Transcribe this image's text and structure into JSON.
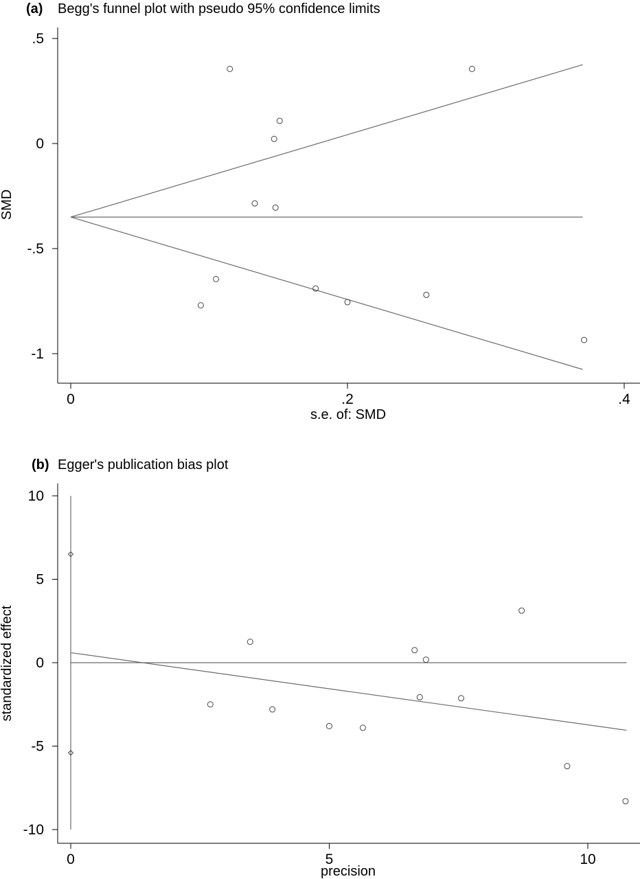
{
  "chart_data": [
    {
      "type": "scatter",
      "panel_label": "(a)",
      "title": "Begg's funnel plot with pseudo 95% confidence limits",
      "xlabel": "s.e. of: SMD",
      "ylabel": "SMD",
      "xlim": [
        0,
        0.41
      ],
      "ylim": [
        -1.15,
        0.55
      ],
      "xticks": [
        {
          "v": 0,
          "label": "0"
        },
        {
          "v": 0.2,
          "label": ".2"
        },
        {
          "v": 0.4,
          "label": ".4"
        }
      ],
      "yticks": [
        {
          "v": 0.5,
          "label": ".5"
        },
        {
          "v": 0,
          "label": "0"
        },
        {
          "v": -0.5,
          "label": "-.5"
        },
        {
          "v": -1,
          "label": "-1"
        }
      ],
      "pooled_effect": -0.35,
      "funnel_se_max": 0.37,
      "points": [
        {
          "x": 0.115,
          "y": 0.355
        },
        {
          "x": 0.29,
          "y": 0.355
        },
        {
          "x": 0.151,
          "y": 0.108
        },
        {
          "x": 0.147,
          "y": 0.022
        },
        {
          "x": 0.133,
          "y": -0.285
        },
        {
          "x": 0.148,
          "y": -0.305
        },
        {
          "x": 0.105,
          "y": -0.645
        },
        {
          "x": 0.094,
          "y": -0.77
        },
        {
          "x": 0.177,
          "y": -0.69
        },
        {
          "x": 0.2,
          "y": -0.755
        },
        {
          "x": 0.257,
          "y": -0.72
        },
        {
          "x": 0.371,
          "y": -0.935
        }
      ]
    },
    {
      "type": "scatter",
      "panel_label": "(b)",
      "title": "Egger's publication bias plot",
      "xlabel": "precision",
      "ylabel": "standardized effect",
      "xlim": [
        0,
        11.1
      ],
      "ylim": [
        -10.5,
        10
      ],
      "xticks": [
        {
          "v": 0,
          "label": "0"
        },
        {
          "v": 5,
          "label": "5"
        },
        {
          "v": 10,
          "label": "10"
        }
      ],
      "yticks": [
        {
          "v": 10,
          "label": "10"
        },
        {
          "v": 5,
          "label": "5"
        },
        {
          "v": 0,
          "label": "0"
        },
        {
          "v": -5,
          "label": "-5"
        },
        {
          "v": -10,
          "label": "-10"
        }
      ],
      "ci_line": {
        "x": 0,
        "y_from": -10,
        "y_to": 10
      },
      "ci_bounds": [
        6.5,
        -5.4
      ],
      "zero_line": {
        "x_from": 0,
        "x_to": 10.75
      },
      "regression_line": {
        "x1": 0,
        "y1": 0.6,
        "x2": 10.75,
        "y2": -4.05
      },
      "points": [
        {
          "x": 3.47,
          "y": 1.25
        },
        {
          "x": 2.7,
          "y": -2.5
        },
        {
          "x": 3.9,
          "y": -2.8
        },
        {
          "x": 5.0,
          "y": -3.8
        },
        {
          "x": 5.65,
          "y": -3.9
        },
        {
          "x": 6.65,
          "y": 0.75
        },
        {
          "x": 6.87,
          "y": 0.18
        },
        {
          "x": 6.75,
          "y": -2.07
        },
        {
          "x": 7.55,
          "y": -2.13
        },
        {
          "x": 8.72,
          "y": 3.12
        },
        {
          "x": 9.6,
          "y": -6.2
        },
        {
          "x": 10.73,
          "y": -8.3
        }
      ]
    }
  ]
}
